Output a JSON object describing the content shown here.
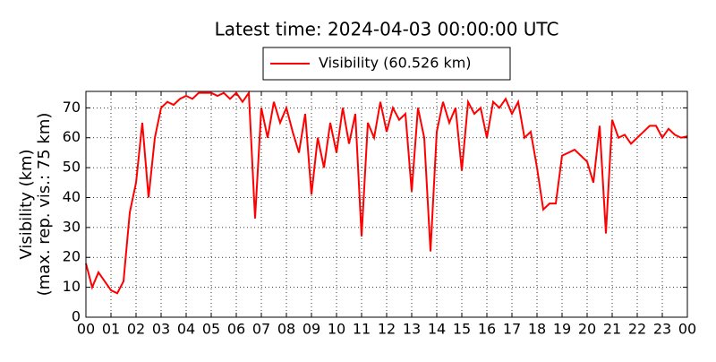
{
  "chart_data": {
    "type": "line",
    "title": "Latest time: 2024-04-03 00:00:00 UTC",
    "y_label": "Visibility (km)",
    "y_label_2": "(max. rep. vis.: 75 km)",
    "legend": "upper center",
    "grid": true,
    "xlim": [
      0,
      24
    ],
    "ylim": [
      0,
      75.5
    ],
    "xticks": [
      {
        "value": 0,
        "label": "00"
      },
      {
        "value": 1,
        "label": "01"
      },
      {
        "value": 2,
        "label": "02"
      },
      {
        "value": 3,
        "label": "03"
      },
      {
        "value": 4,
        "label": "04"
      },
      {
        "value": 5,
        "label": "05"
      },
      {
        "value": 6,
        "label": "06"
      },
      {
        "value": 7,
        "label": "07"
      },
      {
        "value": 8,
        "label": "08"
      },
      {
        "value": 9,
        "label": "09"
      },
      {
        "value": 10,
        "label": "10"
      },
      {
        "value": 11,
        "label": "11"
      },
      {
        "value": 12,
        "label": "12"
      },
      {
        "value": 13,
        "label": "13"
      },
      {
        "value": 14,
        "label": "14"
      },
      {
        "value": 15,
        "label": "15"
      },
      {
        "value": 16,
        "label": "16"
      },
      {
        "value": 17,
        "label": "17"
      },
      {
        "value": 18,
        "label": "18"
      },
      {
        "value": 19,
        "label": "19"
      },
      {
        "value": 20,
        "label": "20"
      },
      {
        "value": 21,
        "label": "21"
      },
      {
        "value": 22,
        "label": "22"
      },
      {
        "value": 23,
        "label": "23"
      },
      {
        "value": 24,
        "label": "00"
      }
    ],
    "yticks": [
      0,
      10,
      20,
      30,
      40,
      50,
      60,
      70
    ],
    "x": [
      0,
      0.25,
      0.5,
      0.75,
      1,
      1.25,
      1.5,
      1.75,
      2,
      2.25,
      2.5,
      2.75,
      3,
      3.25,
      3.5,
      3.75,
      4,
      4.25,
      4.5,
      4.75,
      5,
      5.25,
      5.5,
      5.75,
      6,
      6.25,
      6.5,
      6.75,
      7,
      7.25,
      7.5,
      7.75,
      8,
      8.25,
      8.5,
      8.75,
      9,
      9.25,
      9.5,
      9.75,
      10,
      10.25,
      10.5,
      10.75,
      11,
      11.25,
      11.5,
      11.75,
      12,
      12.25,
      12.5,
      12.75,
      13,
      13.25,
      13.5,
      13.75,
      14,
      14.25,
      14.5,
      14.75,
      15,
      15.25,
      15.5,
      15.75,
      16,
      16.25,
      16.5,
      16.75,
      17,
      17.25,
      17.5,
      17.75,
      18,
      18.25,
      18.5,
      18.75,
      19,
      19.25,
      19.5,
      19.75,
      20,
      20.25,
      20.5,
      20.75,
      21,
      21.25,
      21.5,
      21.75,
      22,
      22.25,
      22.5,
      22.75,
      23,
      23.25,
      23.5,
      23.75,
      24
    ],
    "series": [
      {
        "name": "Visibility (60.526 km)",
        "color": "#ff0000",
        "values": [
          18,
          10,
          15,
          12,
          9,
          8,
          12,
          35,
          45,
          65,
          40,
          60,
          70,
          72,
          71,
          73,
          74,
          73,
          75,
          75,
          75,
          74,
          75,
          73,
          75,
          72,
          75,
          33,
          70,
          60,
          72,
          65,
          70,
          62,
          55,
          68,
          41,
          60,
          50,
          65,
          55,
          70,
          58,
          68,
          27,
          65,
          60,
          72,
          62,
          70,
          66,
          68,
          42,
          70,
          60,
          22,
          62,
          72,
          65,
          70,
          49,
          72,
          68,
          70,
          60,
          72,
          70,
          73,
          68,
          72,
          60,
          62,
          50,
          36,
          38,
          38,
          54,
          55,
          56,
          54,
          52,
          45,
          64,
          28,
          66,
          60,
          61,
          58,
          60,
          62,
          64,
          64,
          60,
          63,
          61,
          60,
          60.5
        ]
      }
    ]
  }
}
